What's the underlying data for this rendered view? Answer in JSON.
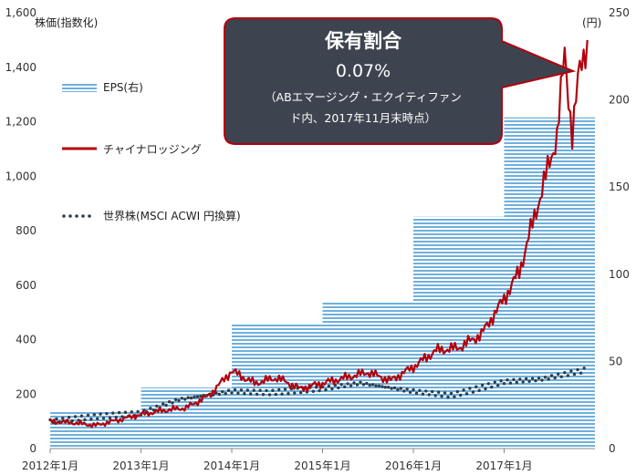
{
  "chart_data": {
    "type": "line",
    "left_axis_title": "株価(指数化)",
    "right_axis_title": "(円)",
    "ylim_left": [
      0,
      1600
    ],
    "yticks_left": [
      "0",
      "200",
      "400",
      "600",
      "800",
      "1,000",
      "1,200",
      "1,400",
      "1,600"
    ],
    "ylim_right": [
      0,
      250
    ],
    "yticks_right": [
      "0",
      "50",
      "100",
      "150",
      "200",
      "250"
    ],
    "xlim": [
      "2012-01",
      "2018-01"
    ],
    "xticks": [
      "2012年1月",
      "2013年1月",
      "2014年1月",
      "2015年1月",
      "2016年1月",
      "2017年1月"
    ],
    "legend_placement": "left",
    "series": [
      {
        "name": "EPS(右)",
        "kind": "step-area",
        "axis": "right",
        "color": "#4f9fd4",
        "x": [
          "2012-01",
          "2013-01",
          "2014-01",
          "2015-01",
          "2016-01",
          "2017-01"
        ],
        "values": [
          21,
          35,
          72,
          84,
          133,
          190
        ]
      },
      {
        "name": "チャイナロッジング",
        "kind": "line",
        "axis": "left",
        "color": "#b3000c",
        "x": [
          "2012-01",
          "2012-04",
          "2012-07",
          "2012-10",
          "2013-01",
          "2013-04",
          "2013-07",
          "2013-10",
          "2014-01",
          "2014-04",
          "2014-07",
          "2014-10",
          "2015-01",
          "2015-04",
          "2015-07",
          "2015-10",
          "2016-01",
          "2016-04",
          "2016-07",
          "2016-10",
          "2017-01",
          "2017-03",
          "2017-05",
          "2017-07",
          "2017-08",
          "2017-09",
          "2017-10",
          "2017-11",
          "2017-12"
        ],
        "values": [
          100,
          95,
          85,
          105,
          125,
          140,
          150,
          195,
          285,
          240,
          260,
          220,
          240,
          260,
          280,
          250,
          300,
          360,
          370,
          420,
          550,
          650,
          850,
          1050,
          1150,
          1450,
          1150,
          1400,
          1500
        ]
      },
      {
        "name": "世界株(MSCI ACWI 円換算)",
        "kind": "dotted",
        "axis": "left",
        "color": "#2f3d4a",
        "x": [
          "2012-01",
          "2012-06",
          "2013-01",
          "2013-06",
          "2014-01",
          "2014-06",
          "2015-01",
          "2015-06",
          "2016-01",
          "2016-06",
          "2017-01",
          "2017-06",
          "2017-12"
        ],
        "values": [
          100,
          115,
          130,
          180,
          210,
          205,
          220,
          240,
          210,
          195,
          245,
          255,
          290
        ]
      }
    ],
    "callout": {
      "title": "保有割合",
      "value": "0.07%",
      "note_line1": "（ABエマージング・エクイティファン",
      "note_line2": "ド内、2017年11月末時点）",
      "fill": "#3d4450",
      "border": "#b3000c"
    }
  }
}
